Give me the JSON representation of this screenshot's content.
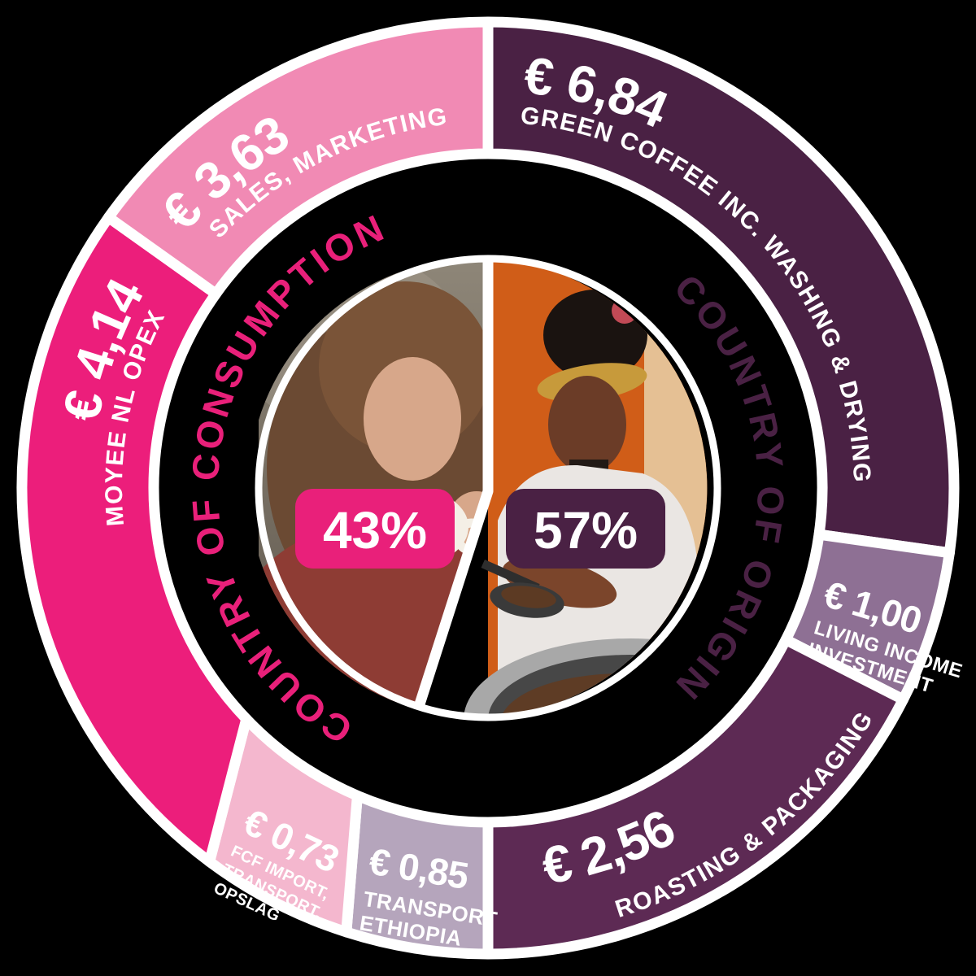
{
  "canvas": {
    "background": "#000000"
  },
  "chart_data": {
    "type": "pie",
    "style": "donut-infographic",
    "groups": [
      {
        "id": "consumption",
        "label": "COUNTRY OF CONSUMPTION",
        "share": "43%",
        "color": "#e9207a"
      },
      {
        "id": "origin",
        "label": "COUNTRY OF ORIGIN",
        "share": "57%",
        "color": "#4a2144"
      }
    ],
    "segments": [
      {
        "id": "green-coffee",
        "group": "origin",
        "amount": "€ 6,84",
        "value": 6.84,
        "label": "GREEN COFFEE INC. WASHING & DRYING",
        "color": "#4a2144",
        "inner_deg": [
          0,
          98
        ],
        "outer_deg": [
          0,
          98
        ]
      },
      {
        "id": "living-income",
        "group": "origin",
        "amount": "€ 1,00",
        "value": 1.0,
        "label": "LIVING INCOME INVESTMENT",
        "label_lines": [
          "LIVING INCOME",
          "INVESTMENT"
        ],
        "color": "#8e7094",
        "inner_deg": [
          98,
          117
        ],
        "outer_deg": [
          98,
          117
        ]
      },
      {
        "id": "roasting-packaging",
        "group": "origin",
        "amount": "€ 2,56",
        "value": 2.56,
        "label": "ROASTING & PACKAGING",
        "color": "#5d2a54",
        "inner_deg": [
          117,
          180
        ],
        "outer_deg": [
          117,
          180
        ]
      },
      {
        "id": "transport-ethiopia",
        "group": "origin",
        "amount": "€ 0,85",
        "value": 0.85,
        "label": "TRANSPORT ETHIOPIA",
        "label_lines": [
          "TRANSPORT",
          "ETHIOPIA"
        ],
        "color": "#b5a5bc",
        "inner_deg": [
          180,
          203
        ],
        "outer_deg": [
          180,
          197.7
        ]
      },
      {
        "id": "fcf-import-transport-opslag",
        "group": "consumption",
        "amount": "€ 0,73",
        "value": 0.73,
        "label": "FCF IMPORT, TRANSPORT, OPSLAG",
        "label_lines": [
          "FCF IMPORT,",
          "TRANSPORT,",
          "OPSLAG"
        ],
        "color": "#f4b7ce",
        "inner_deg": [
          203,
          226.3
        ],
        "outer_deg": [
          197.7,
          216.7
        ]
      },
      {
        "id": "moyee-nl-opex",
        "group": "consumption",
        "amount": "€ 4,14",
        "value": 4.14,
        "label": "MOYEE NL OPEX",
        "color": "#ec1e7b",
        "inner_deg": [
          226.3,
          305.5
        ],
        "outer_deg": [
          216.7,
          305.5
        ]
      },
      {
        "id": "sales-marketing",
        "group": "consumption",
        "amount": "€ 3,63",
        "value": 3.63,
        "label": "SALES, MARKETING",
        "color": "#f18ab4",
        "inner_deg": [
          305.5,
          360
        ],
        "outer_deg": [
          305.5,
          360
        ]
      }
    ],
    "ring": {
      "outer_radius": 573,
      "inner_radius": 411,
      "divider_color": "#ffffff"
    },
    "legend_position": "curved-inside-ring"
  },
  "center": {
    "photos": {
      "left": "woman drinking coffee from a white cup",
      "right": "woman in white shirt scooping roasted coffee beans"
    }
  }
}
